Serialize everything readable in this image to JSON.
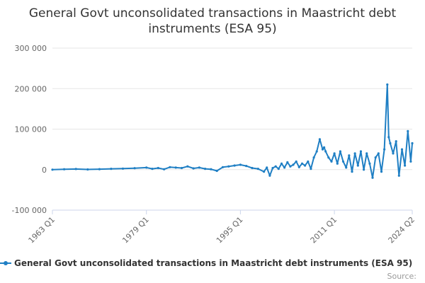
{
  "chart_data": {
    "type": "line",
    "title": "General Govt unconsolidated transactions in Maastricht debt instruments (ESA 95)",
    "title_lines": [
      "General Govt unconsolidated transactions in Maastricht debt",
      "instruments (ESA 95)"
    ],
    "ylim": [
      -100000,
      300000
    ],
    "yticks": [
      -100000,
      0,
      100000,
      200000,
      300000
    ],
    "ytick_labels": [
      "-100 000",
      "0",
      "100 000",
      "200 000",
      "300 000"
    ],
    "xlim": [
      "1963 Q1",
      "2024 Q2"
    ],
    "xticks": [
      "1963 Q1",
      "1979 Q1",
      "1995 Q1",
      "2011 Q1",
      "2024 Q2"
    ],
    "grid": true,
    "legend_position": "bottom",
    "series": [
      {
        "name": "General Govt unconsolidated transactions in Maastricht debt instruments (ESA 95)",
        "color": "#1f7fc4",
        "marker": "circle",
        "x": [
          "1963 Q1",
          "1965 Q1",
          "1967 Q1",
          "1969 Q1",
          "1971 Q1",
          "1973 Q1",
          "1975 Q1",
          "1977 Q1",
          "1979 Q1",
          "1980 Q1",
          "1981 Q1",
          "1982 Q1",
          "1983 Q1",
          "1984 Q1",
          "1985 Q1",
          "1986 Q1",
          "1987 Q1",
          "1988 Q1",
          "1989 Q1",
          "1990 Q1",
          "1991 Q1",
          "1992 Q1",
          "1993 Q1",
          "1994 Q1",
          "1995 Q1",
          "1996 Q1",
          "1997 Q1",
          "1998 Q1",
          "1999 Q1",
          "1999 Q3",
          "2000 Q1",
          "2000 Q3",
          "2001 Q1",
          "2001 Q3",
          "2002 Q1",
          "2002 Q3",
          "2003 Q1",
          "2003 Q3",
          "2004 Q1",
          "2004 Q3",
          "2005 Q1",
          "2005 Q3",
          "2006 Q1",
          "2006 Q3",
          "2007 Q1",
          "2007 Q3",
          "2008 Q1",
          "2008 Q3",
          "2009 Q1",
          "2009 Q2",
          "2009 Q3",
          "2010 Q1",
          "2010 Q3",
          "2011 Q1",
          "2011 Q3",
          "2012 Q1",
          "2012 Q3",
          "2013 Q1",
          "2013 Q3",
          "2014 Q1",
          "2014 Q3",
          "2015 Q1",
          "2015 Q3",
          "2016 Q1",
          "2016 Q3",
          "2017 Q1",
          "2017 Q3",
          "2018 Q1",
          "2018 Q3",
          "2019 Q1",
          "2019 Q3",
          "2020 Q1",
          "2020 Q2",
          "2020 Q3",
          "2021 Q1",
          "2021 Q3",
          "2022 Q1",
          "2022 Q3",
          "2023 Q1",
          "2023 Q3",
          "2024 Q1",
          "2024 Q2"
        ],
        "values": [
          0,
          1000,
          1500,
          500,
          1200,
          2000,
          2500,
          3500,
          5000,
          2000,
          4000,
          1000,
          6000,
          5000,
          4000,
          8000,
          3000,
          5000,
          2000,
          1000,
          -3000,
          6000,
          8000,
          10000,
          12000,
          9000,
          4000,
          2000,
          -5000,
          5000,
          -15000,
          4000,
          8000,
          2000,
          15000,
          5000,
          18000,
          8000,
          12000,
          20000,
          6000,
          15000,
          10000,
          20000,
          2000,
          30000,
          45000,
          75000,
          50000,
          55000,
          45000,
          30000,
          20000,
          40000,
          15000,
          45000,
          20000,
          5000,
          35000,
          -5000,
          40000,
          10000,
          45000,
          0,
          40000,
          15000,
          -20000,
          30000,
          40000,
          -5000,
          50000,
          210000,
          80000,
          65000,
          40000,
          70000,
          -15000,
          50000,
          10000,
          95000,
          20000,
          65000
        ]
      }
    ],
    "credit": "Source:"
  }
}
